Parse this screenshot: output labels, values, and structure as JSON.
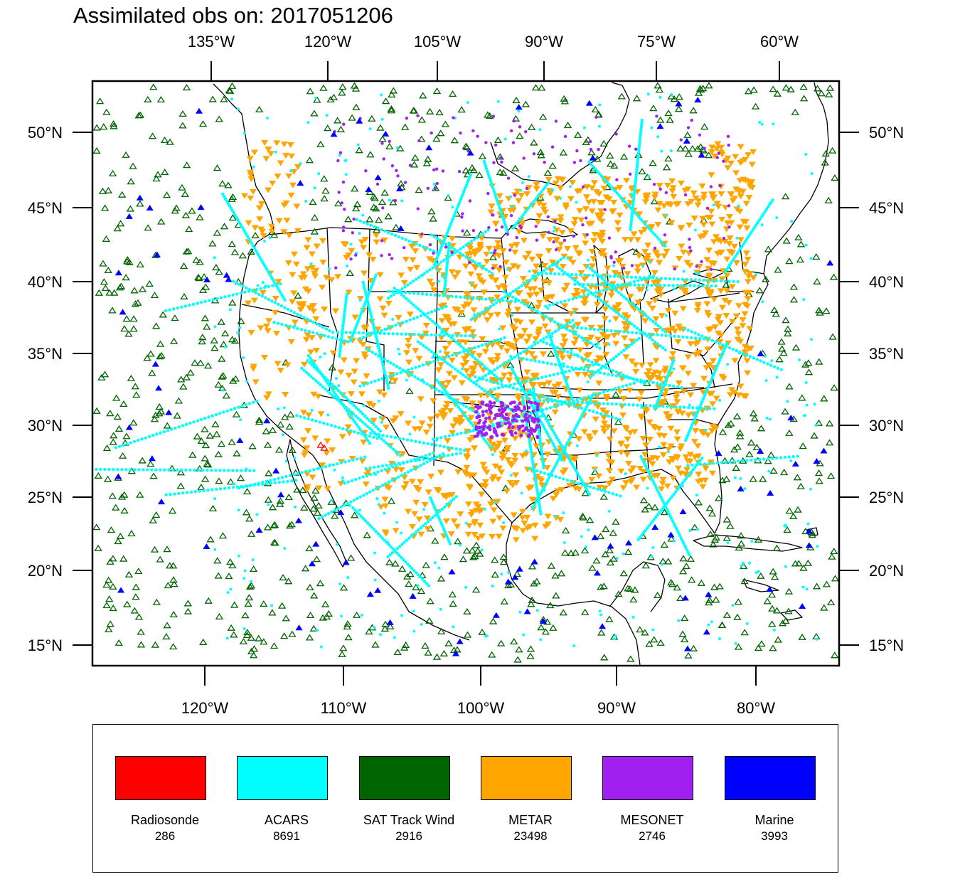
{
  "title": "Assimilated obs on: 2017051206",
  "top_lon_labels": [
    "135°W",
    "120°W",
    "105°W",
    "90°W",
    "75°W",
    "60°W"
  ],
  "bottom_lon_labels": [
    "120°W",
    "110°W",
    "100°W",
    "90°W",
    "80°W"
  ],
  "lat_labels": [
    "50°N",
    "45°N",
    "40°N",
    "35°N",
    "30°N",
    "25°N",
    "20°N",
    "15°N"
  ],
  "legend": [
    {
      "name": "Radiosonde",
      "count": "286",
      "color": "#ff0000"
    },
    {
      "name": "ACARS",
      "count": "8691",
      "color": "#00ffff"
    },
    {
      "name": "SAT Track Wind",
      "count": "2916",
      "color": "#006400"
    },
    {
      "name": "METAR",
      "count": "23498",
      "color": "#ffa500"
    },
    {
      "name": "MESONET",
      "count": "2746",
      "color": "#a020f0"
    },
    {
      "name": "Marine",
      "count": "3993",
      "color": "#0000ff"
    }
  ]
}
